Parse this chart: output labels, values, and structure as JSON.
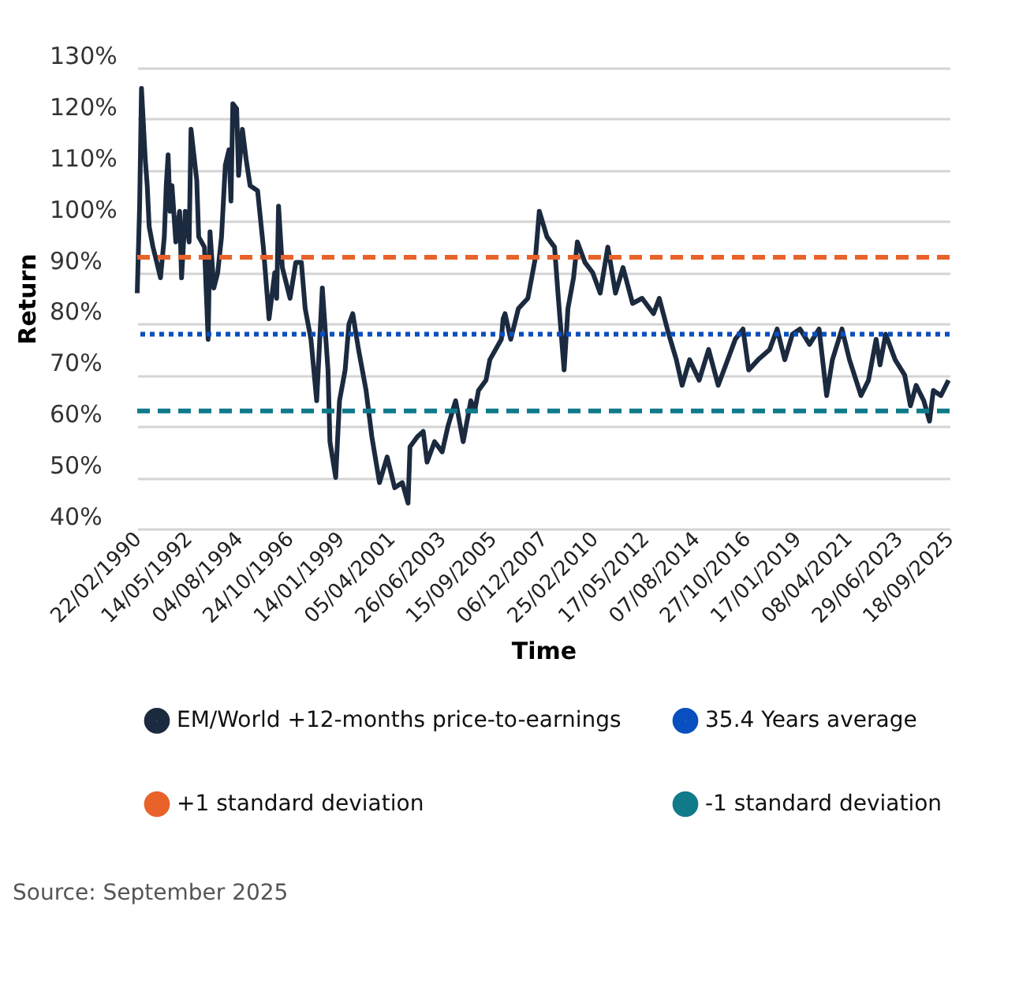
{
  "chart_data": {
    "type": "line",
    "xlabel": "Time",
    "ylabel": "Return",
    "annotations": [
      "Source: September 2025"
    ],
    "x": [
      "1990-02-22",
      "1990-04",
      "1990-05",
      "1990-07",
      "1990-08",
      "1990-09",
      "1990-11",
      "1991-01",
      "1991-03",
      "1991-05",
      "1991-06",
      "1991-07",
      "1991-08",
      "1991-09",
      "1991-11",
      "1992-01",
      "1992-02",
      "1992-04",
      "1992-06",
      "1992-07",
      "1992-10",
      "1992-11",
      "1993-02",
      "1993-04",
      "1993-05",
      "1993-07",
      "1993-09",
      "1993-11",
      "1994-01",
      "1994-03",
      "1994-04",
      "1994-05",
      "1994-07",
      "1994-08",
      "1994-10",
      "1994-12",
      "1995-02",
      "1995-06",
      "1995-09",
      "1995-12",
      "1996-03",
      "1996-04",
      "1996-05",
      "1996-07",
      "1996-11",
      "1997-02",
      "1997-05",
      "1997-07",
      "1997-10",
      "1998-01",
      "1998-04",
      "1998-07",
      "1998-08",
      "1998-11",
      "1999-01",
      "1999-04",
      "1999-06",
      "1999-08",
      "1999-11",
      "2000-03",
      "2000-06",
      "2000-10",
      "2001-02",
      "2001-06",
      "2001-10",
      "2002-01",
      "2002-02",
      "2002-06",
      "2002-09",
      "2002-11",
      "2003-03",
      "2003-07",
      "2003-10",
      "2004-02",
      "2004-06",
      "2004-10",
      "2004-12",
      "2005-02",
      "2005-06",
      "2005-08",
      "2006-02",
      "2006-03",
      "2006-04",
      "2006-07",
      "2006-11",
      "2007-04",
      "2007-08",
      "2007-10",
      "2008-02",
      "2008-06",
      "2008-08",
      "2008-11",
      "2009-01",
      "2009-04",
      "2009-06",
      "2009-10",
      "2010-02",
      "2010-06",
      "2010-10",
      "2011-02",
      "2011-06",
      "2011-11",
      "2012-04",
      "2012-10",
      "2013-01",
      "2013-06",
      "2013-10",
      "2014-01",
      "2014-05",
      "2014-10",
      "2015-03",
      "2015-08",
      "2015-12",
      "2016-05",
      "2016-09",
      "2016-12",
      "2017-05",
      "2017-11",
      "2018-03",
      "2018-07",
      "2018-11",
      "2019-03",
      "2019-08",
      "2020-01",
      "2020-05",
      "2020-08",
      "2021-01",
      "2021-05",
      "2021-11",
      "2022-03",
      "2022-07",
      "2022-09",
      "2022-12",
      "2023-05",
      "2023-10",
      "2024-01",
      "2024-04",
      "2024-08",
      "2024-11",
      "2025-01",
      "2025-05",
      "2025-09"
    ],
    "series": [
      {
        "name": "EM/World +12-months price-to-earnings",
        "color": "#1c2a3f",
        "values": [
          86,
          103,
          126,
          112,
          107,
          99,
          95,
          92,
          89,
          97,
          107,
          113,
          102,
          107,
          96,
          102,
          89,
          102,
          96,
          118,
          108,
          97,
          95,
          77,
          98,
          87,
          90,
          97,
          111,
          114,
          104,
          123,
          122,
          109,
          118,
          112,
          107,
          106,
          95,
          81,
          90,
          85,
          103,
          91,
          85,
          92,
          92,
          83,
          77,
          65,
          87,
          71,
          57,
          50,
          65,
          71,
          80,
          82,
          75,
          67,
          58,
          49,
          54,
          48,
          49,
          45,
          56,
          58,
          59,
          53,
          57,
          55,
          60,
          65,
          57,
          65,
          63,
          67,
          69,
          73,
          77,
          81,
          82,
          77,
          83,
          85,
          93,
          102,
          97,
          95,
          85,
          71,
          83,
          89,
          96,
          92,
          90,
          86,
          95,
          86,
          91,
          84,
          85,
          82,
          85,
          78,
          73,
          68,
          73,
          69,
          75,
          68,
          72,
          77,
          79,
          71,
          73,
          75,
          79,
          73,
          78,
          79,
          76,
          79,
          66,
          73,
          79,
          73,
          66,
          69,
          77,
          72,
          78,
          73,
          70,
          64,
          68,
          65,
          61,
          67,
          66,
          69
        ]
      }
    ],
    "xlim": [
      "1990-02-22",
      "2025-09-18"
    ],
    "xticks": [
      {
        "value": "1990-02-22",
        "label": "22/02/1990"
      },
      {
        "value": "1992-05-14",
        "label": "14/05/1992"
      },
      {
        "value": "1994-08-04",
        "label": "04/08/1994"
      },
      {
        "value": "1996-10-24",
        "label": "24/10/1996"
      },
      {
        "value": "1999-01-14",
        "label": "14/01/1999"
      },
      {
        "value": "2001-04-05",
        "label": "05/04/2001"
      },
      {
        "value": "2003-06-26",
        "label": "26/06/2003"
      },
      {
        "value": "2005-09-15",
        "label": "15/09/2005"
      },
      {
        "value": "2007-12-06",
        "label": "06/12/2007"
      },
      {
        "value": "2010-02-25",
        "label": "25/02/2010"
      },
      {
        "value": "2012-05-17",
        "label": "17/05/2012"
      },
      {
        "value": "2014-08-07",
        "label": "07/08/2014"
      },
      {
        "value": "2016-10-27",
        "label": "27/10/2016"
      },
      {
        "value": "2019-01-17",
        "label": "17/01/2019"
      },
      {
        "value": "2021-04-08",
        "label": "08/04/2021"
      },
      {
        "value": "2023-06-29",
        "label": "29/06/2023"
      },
      {
        "value": "2025-09-18",
        "label": "18/09/2025"
      }
    ],
    "ylim": [
      40,
      130
    ],
    "yticks": [
      {
        "value": 40,
        "label": "40%"
      },
      {
        "value": 50,
        "label": "50%"
      },
      {
        "value": 60,
        "label": "60%"
      },
      {
        "value": 70,
        "label": "70%"
      },
      {
        "value": 80,
        "label": "80%"
      },
      {
        "value": 90,
        "label": "90%"
      },
      {
        "value": 100,
        "label": "100%"
      },
      {
        "value": 110,
        "label": "110%"
      },
      {
        "value": 120,
        "label": "120%"
      },
      {
        "value": 130,
        "label": "130%"
      }
    ],
    "ref_lines": [
      {
        "axis": "y",
        "value": 78,
        "label": "35.4 Years average",
        "color": "#0a4fc0",
        "line_style": "dotted"
      },
      {
        "axis": "y",
        "value": 93,
        "label": "+1 standard deviation",
        "color": "#e8622a",
        "line_style": "dashed"
      },
      {
        "axis": "y",
        "value": 63,
        "label": "-1 standard deviation",
        "color": "#0f7a8a",
        "line_style": "dashed"
      }
    ],
    "grid": "y",
    "legend": "bottom",
    "line_style": "solid"
  }
}
